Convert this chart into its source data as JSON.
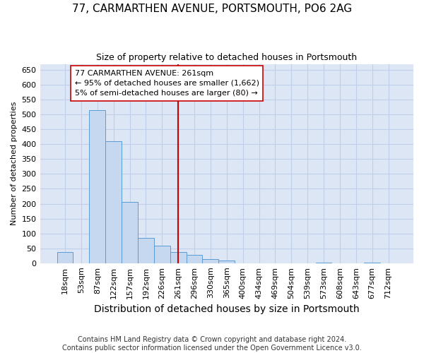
{
  "title": "77, CARMARTHEN AVENUE, PORTSMOUTH, PO6 2AG",
  "subtitle": "Size of property relative to detached houses in Portsmouth",
  "xlabel": "Distribution of detached houses by size in Portsmouth",
  "ylabel": "Number of detached properties",
  "footnote1": "Contains HM Land Registry data © Crown copyright and database right 2024.",
  "footnote2": "Contains public sector information licensed under the Open Government Licence v3.0.",
  "categories": [
    "18sqm",
    "53sqm",
    "87sqm",
    "122sqm",
    "157sqm",
    "192sqm",
    "226sqm",
    "261sqm",
    "296sqm",
    "330sqm",
    "365sqm",
    "400sqm",
    "434sqm",
    "469sqm",
    "504sqm",
    "539sqm",
    "573sqm",
    "608sqm",
    "643sqm",
    "677sqm",
    "712sqm"
  ],
  "bar_heights": [
    37,
    0,
    515,
    410,
    207,
    85,
    58,
    37,
    27,
    13,
    10,
    0,
    0,
    0,
    0,
    0,
    3,
    0,
    0,
    3,
    0
  ],
  "bar_color": "#c5d8f0",
  "bar_edge_color": "#5b9bd5",
  "grid_color": "#c0cfe8",
  "background_color": "#dce6f5",
  "vline_x_index": 7,
  "vline_color": "#cc0000",
  "annotation_text_line1": "77 CARMARTHEN AVENUE: 261sqm",
  "annotation_text_line2": "← 95% of detached houses are smaller (1,662)",
  "annotation_text_line3": "5% of semi-detached houses are larger (80) →",
  "ylim": [
    0,
    670
  ],
  "yticks": [
    0,
    50,
    100,
    150,
    200,
    250,
    300,
    350,
    400,
    450,
    500,
    550,
    600,
    650
  ],
  "title_fontsize": 11,
  "subtitle_fontsize": 9,
  "xlabel_fontsize": 10,
  "ylabel_fontsize": 8,
  "tick_fontsize": 8,
  "footnote_fontsize": 7
}
